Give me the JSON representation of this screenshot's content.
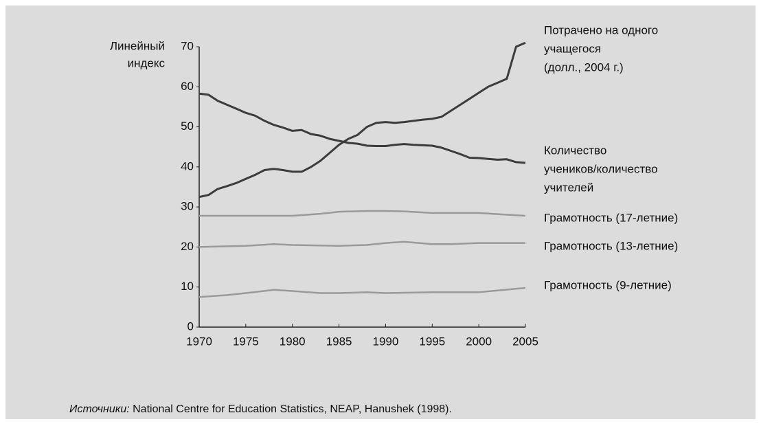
{
  "chart_data": {
    "type": "line",
    "ylabel": [
      "Линейный",
      "индекс"
    ],
    "xlim": [
      1970,
      2005
    ],
    "xticks": [
      1970,
      1975,
      1980,
      1985,
      1990,
      1995,
      2000,
      2005
    ],
    "ylim": [
      0,
      70
    ],
    "yticks": [
      0,
      10,
      20,
      30,
      40,
      50,
      60,
      70
    ],
    "grid": false,
    "series": [
      {
        "name": [
          "Потрачено на одного",
          "учащегося",
          "(долл., 2004 г.)"
        ],
        "color": "#3c3c3c",
        "x": [
          1970,
          1971,
          1972,
          1973,
          1974,
          1975,
          1976,
          1977,
          1978,
          1979,
          1980,
          1981,
          1982,
          1983,
          1984,
          1985,
          1986,
          1987,
          1988,
          1989,
          1990,
          1991,
          1992,
          1993,
          1994,
          1995,
          1996,
          1997,
          1998,
          1999,
          2000,
          2001,
          2002,
          2003,
          2004,
          2005
        ],
        "values": [
          32.5,
          33,
          34.5,
          35.2,
          36,
          37,
          38,
          39.2,
          39.5,
          39.2,
          38.8,
          38.8,
          40,
          41.5,
          43.5,
          45.5,
          47,
          48,
          50,
          51,
          51.2,
          51,
          51.2,
          51.5,
          51.8,
          52,
          52.5,
          54,
          55.5,
          57,
          58.5,
          60,
          61,
          62,
          70,
          71
        ]
      },
      {
        "name": [
          "Количество",
          "учеников/количество",
          "учителей"
        ],
        "color": "#3c3c3c",
        "x": [
          1970,
          1971,
          1972,
          1973,
          1974,
          1975,
          1976,
          1977,
          1978,
          1979,
          1980,
          1981,
          1982,
          1983,
          1984,
          1985,
          1986,
          1987,
          1988,
          1989,
          1990,
          1991,
          1992,
          1993,
          1994,
          1995,
          1996,
          1997,
          1998,
          1999,
          2000,
          2001,
          2002,
          2003,
          2004,
          2005
        ],
        "values": [
          58.3,
          58,
          56.5,
          55.5,
          54.5,
          53.5,
          52.8,
          51.5,
          50.5,
          49.8,
          49,
          49.2,
          48.2,
          47.8,
          47,
          46.5,
          46,
          45.8,
          45.3,
          45.2,
          45.2,
          45.5,
          45.7,
          45.5,
          45.4,
          45.3,
          44.8,
          44,
          43.2,
          42.3,
          42.2,
          42,
          41.8,
          41.9,
          41.2,
          41
        ]
      },
      {
        "name": [
          "Грамотность (17-летние)"
        ],
        "color": "#9a9a9a",
        "x": [
          1970,
          1975,
          1980,
          1983,
          1985,
          1988,
          1990,
          1992,
          1995,
          2000,
          2002,
          2005
        ],
        "values": [
          27.8,
          27.8,
          27.8,
          28.3,
          28.8,
          29,
          29,
          28.9,
          28.5,
          28.5,
          28.2,
          27.8
        ]
      },
      {
        "name": [
          "Грамотность (13-летние)"
        ],
        "color": "#9a9a9a",
        "x": [
          1970,
          1975,
          1978,
          1980,
          1985,
          1988,
          1990,
          1992,
          1995,
          1997,
          2000,
          2005
        ],
        "values": [
          20,
          20.3,
          20.7,
          20.5,
          20.3,
          20.5,
          21,
          21.3,
          20.7,
          20.7,
          21,
          21
        ]
      },
      {
        "name": [
          "Грамотность (9-летние)"
        ],
        "color": "#9a9a9a",
        "x": [
          1970,
          1973,
          1975,
          1978,
          1980,
          1983,
          1985,
          1988,
          1990,
          1995,
          2000,
          2005
        ],
        "values": [
          7.5,
          8,
          8.5,
          9.3,
          9,
          8.5,
          8.5,
          8.7,
          8.5,
          8.7,
          8.7,
          9.8
        ]
      }
    ],
    "source": {
      "label": "Источники:",
      "text": "National Centre for Education Statistics, NEAP, Hanushek (1998)."
    }
  }
}
